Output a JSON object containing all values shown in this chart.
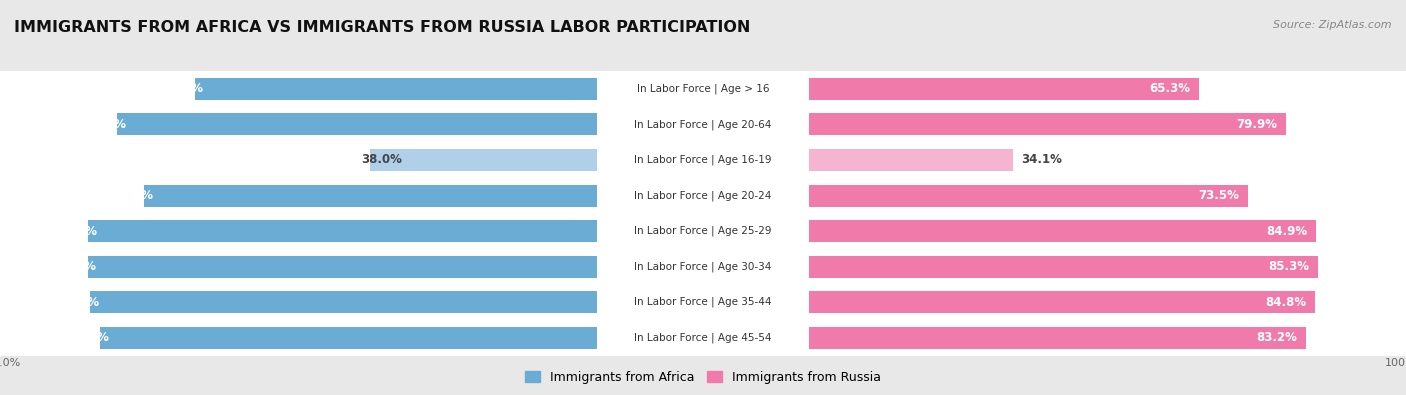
{
  "title": "IMMIGRANTS FROM AFRICA VS IMMIGRANTS FROM RUSSIA LABOR PARTICIPATION",
  "source": "Source: ZipAtlas.com",
  "categories": [
    "In Labor Force | Age > 16",
    "In Labor Force | Age 20-64",
    "In Labor Force | Age 16-19",
    "In Labor Force | Age 20-24",
    "In Labor Force | Age 25-29",
    "In Labor Force | Age 30-34",
    "In Labor Force | Age 35-44",
    "In Labor Force | Age 45-54"
  ],
  "africa_values": [
    67.4,
    80.4,
    38.0,
    75.8,
    85.2,
    85.3,
    84.9,
    83.2
  ],
  "russia_values": [
    65.3,
    79.9,
    34.1,
    73.5,
    84.9,
    85.3,
    84.8,
    83.2
  ],
  "africa_color_dark": "#6aacd4",
  "africa_color_light": "#b0cfe8",
  "russia_color_dark": "#f07aaa",
  "russia_color_light": "#f5b5d0",
  "label_africa": "Immigrants from Africa",
  "label_russia": "Immigrants from Russia",
  "max_val": 100.0,
  "background_color": "#e8e8e8",
  "row_bg_even": "#f2f2f2",
  "row_bg_odd": "#e8e8e8",
  "title_fontsize": 11.5,
  "bar_label_fontsize": 8.5,
  "category_fontsize": 7.5,
  "legend_fontsize": 9,
  "axis_label_fontsize": 8
}
